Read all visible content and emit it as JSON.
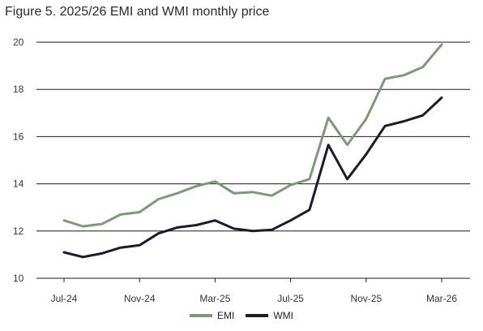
{
  "title": "Figure 5. 2025/26 EMI and WMI monthly price",
  "chart_data": {
    "type": "line",
    "x": [
      "Jul-24",
      "Aug-24",
      "Sep-24",
      "Oct-24",
      "Nov-24",
      "Dec-24",
      "Jan-25",
      "Feb-25",
      "Mar-25",
      "Apr-25",
      "May-25",
      "Jun-25",
      "Jul-25",
      "Aug-25",
      "Sep-25",
      "Oct-25",
      "Nov-25",
      "Dec-25",
      "Jan-26",
      "Feb-26",
      "Mar-26"
    ],
    "xticks": [
      "Jul-24",
      "Nov-24",
      "Mar-25",
      "Jul-25",
      "Nov-25",
      "Mar-26"
    ],
    "ylim": [
      10,
      20
    ],
    "yticks": [
      10,
      12,
      14,
      16,
      18,
      20
    ],
    "grid": "horizontal",
    "legend_position": "bottom",
    "series": [
      {
        "name": "EMI",
        "color": "#7a9b76",
        "values": [
          12.45,
          12.2,
          12.3,
          12.7,
          12.8,
          13.35,
          13.6,
          13.9,
          14.1,
          13.6,
          13.65,
          13.5,
          13.95,
          14.2,
          16.8,
          15.65,
          16.75,
          18.45,
          18.6,
          18.95,
          19.9
        ]
      },
      {
        "name": "WMI",
        "color": "#1b1a2e",
        "values": [
          11.1,
          10.9,
          11.05,
          11.3,
          11.4,
          11.9,
          12.15,
          12.25,
          12.45,
          12.1,
          12.0,
          12.05,
          12.45,
          12.9,
          15.65,
          14.2,
          15.25,
          16.45,
          16.65,
          16.9,
          17.65
        ]
      }
    ]
  }
}
